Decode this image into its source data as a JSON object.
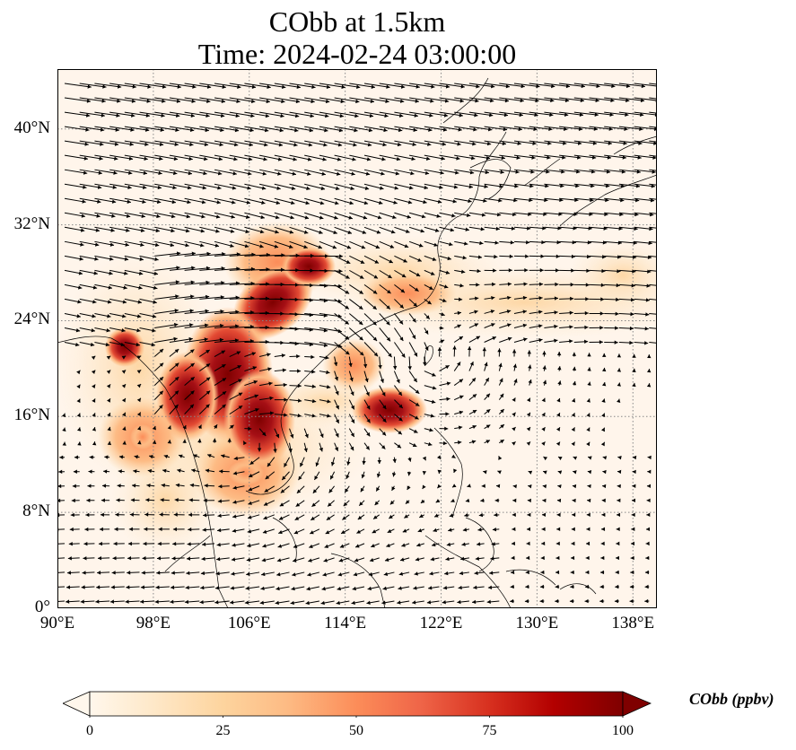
{
  "title": {
    "line1": "CObb at 1.5km",
    "line2": "Time: 2024-02-24 03:00:00"
  },
  "map": {
    "lon_range": [
      90,
      140
    ],
    "lat_range": [
      0,
      45
    ],
    "projection": "PlateCarree",
    "gridlines": "dotted-gray",
    "lon_ticks": [
      "90°E",
      "98°E",
      "106°E",
      "114°E",
      "122°E",
      "130°E",
      "138°E"
    ],
    "lon_tick_values": [
      90,
      98,
      106,
      114,
      122,
      130,
      138
    ],
    "lat_ticks": [
      "0°",
      "8°N",
      "16°N",
      "24°N",
      "32°N",
      "40°N"
    ],
    "lat_tick_values": [
      0,
      8,
      16,
      24,
      32,
      40
    ],
    "field": "CObb",
    "vectors": "wind at 1.5km",
    "high_concentration_regions": [
      {
        "lon": 104.5,
        "lat": 19.5,
        "value": 100
      },
      {
        "lon": 107,
        "lat": 24.5,
        "value": 95
      },
      {
        "lon": 101,
        "lat": 19,
        "value": 90
      },
      {
        "lon": 95.5,
        "lat": 21.5,
        "value": 80
      },
      {
        "lon": 117.5,
        "lat": 16.5,
        "value": 90
      },
      {
        "lon": 105.5,
        "lat": 15.5,
        "value": 75
      },
      {
        "lon": 108.5,
        "lat": 28,
        "value": 65
      }
    ],
    "colors": {
      "background": "#fff5eb",
      "low": "#fdd49e",
      "mid": "#fc8d59",
      "high": "#d7301f",
      "max": "#7f0000",
      "vectors": "#000000",
      "coastline": "#000000"
    }
  },
  "colorbar": {
    "cmap": "OrRd",
    "min": 0,
    "max": 100,
    "ticks": [
      "0",
      "25",
      "50",
      "75",
      "100"
    ],
    "tick_values": [
      0,
      25,
      50,
      75,
      100
    ],
    "extend": "both",
    "label": "CObb (ppbv)"
  }
}
